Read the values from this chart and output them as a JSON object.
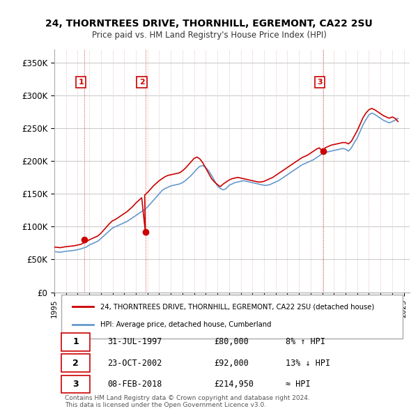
{
  "title": "24, THORNTREES DRIVE, THORNHILL, EGREMONT, CA22 2SU",
  "subtitle": "Price paid vs. HM Land Registry's House Price Index (HPI)",
  "ylabel_ticks": [
    "£0",
    "£50K",
    "£100K",
    "£150K",
    "£200K",
    "£250K",
    "£300K",
    "£350K"
  ],
  "ytick_values": [
    0,
    50000,
    100000,
    150000,
    200000,
    250000,
    300000,
    350000
  ],
  "ylim": [
    0,
    370000
  ],
  "xlim_start": 1995.0,
  "xlim_end": 2025.5,
  "sales": [
    {
      "label": "1",
      "date_str": "31-JUL-1997",
      "year": 1997.58,
      "price": 80000,
      "hpi_note": "8% ↑ HPI"
    },
    {
      "label": "2",
      "date_str": "23-OCT-2002",
      "year": 2002.81,
      "price": 92000,
      "hpi_note": "13% ↓ HPI"
    },
    {
      "label": "3",
      "date_str": "08-FEB-2018",
      "year": 2018.1,
      "price": 214950,
      "hpi_note": "≈ HPI"
    }
  ],
  "legend_line1": "24, THORNTREES DRIVE, THORNHILL, EGREMONT, CA22 2SU (detached house)",
  "legend_line2": "HPI: Average price, detached house, Cumberland",
  "footer1": "Contains HM Land Registry data © Crown copyright and database right 2024.",
  "footer2": "This data is licensed under the Open Government Licence v3.0.",
  "red_color": "#cc0000",
  "blue_color": "#6699cc",
  "background_color": "#ffffff",
  "grid_color": "#cccccc",
  "hpi_data_x": [
    1995.0,
    1995.25,
    1995.5,
    1995.75,
    1996.0,
    1996.25,
    1996.5,
    1996.75,
    1997.0,
    1997.25,
    1997.5,
    1997.75,
    1998.0,
    1998.25,
    1998.5,
    1998.75,
    1999.0,
    1999.25,
    1999.5,
    1999.75,
    2000.0,
    2000.25,
    2000.5,
    2000.75,
    2001.0,
    2001.25,
    2001.5,
    2001.75,
    2002.0,
    2002.25,
    2002.5,
    2002.75,
    2003.0,
    2003.25,
    2003.5,
    2003.75,
    2004.0,
    2004.25,
    2004.5,
    2004.75,
    2005.0,
    2005.25,
    2005.5,
    2005.75,
    2006.0,
    2006.25,
    2006.5,
    2006.75,
    2007.0,
    2007.25,
    2007.5,
    2007.75,
    2008.0,
    2008.25,
    2008.5,
    2008.75,
    2009.0,
    2009.25,
    2009.5,
    2009.75,
    2010.0,
    2010.25,
    2010.5,
    2010.75,
    2011.0,
    2011.25,
    2011.5,
    2011.75,
    2012.0,
    2012.25,
    2012.5,
    2012.75,
    2013.0,
    2013.25,
    2013.5,
    2013.75,
    2014.0,
    2014.25,
    2014.5,
    2014.75,
    2015.0,
    2015.25,
    2015.5,
    2015.75,
    2016.0,
    2016.25,
    2016.5,
    2016.75,
    2017.0,
    2017.25,
    2017.5,
    2017.75,
    2018.0,
    2018.25,
    2018.5,
    2018.75,
    2019.0,
    2019.25,
    2019.5,
    2019.75,
    2020.0,
    2020.25,
    2020.5,
    2020.75,
    2021.0,
    2021.25,
    2021.5,
    2021.75,
    2022.0,
    2022.25,
    2022.5,
    2022.75,
    2023.0,
    2023.25,
    2023.5,
    2023.75,
    2024.0,
    2024.25,
    2024.5
  ],
  "hpi_data_y": [
    62000,
    61500,
    61000,
    61800,
    62500,
    63000,
    63500,
    64000,
    65000,
    66000,
    67500,
    69000,
    72000,
    74000,
    76000,
    78000,
    82000,
    86000,
    90000,
    94000,
    98000,
    100000,
    102000,
    104000,
    106000,
    108000,
    111000,
    114000,
    117000,
    120000,
    123000,
    126000,
    130000,
    135000,
    140000,
    145000,
    150000,
    155000,
    158000,
    160000,
    162000,
    163000,
    164000,
    165000,
    167000,
    170000,
    174000,
    178000,
    183000,
    188000,
    192000,
    193000,
    190000,
    185000,
    178000,
    170000,
    162000,
    158000,
    156000,
    158000,
    163000,
    165000,
    167000,
    168000,
    169000,
    170000,
    169000,
    168000,
    167000,
    166000,
    165000,
    164000,
    163000,
    163000,
    164000,
    166000,
    168000,
    170000,
    173000,
    176000,
    179000,
    182000,
    185000,
    188000,
    191000,
    194000,
    196000,
    198000,
    200000,
    202000,
    205000,
    208000,
    211000,
    213000,
    214000,
    215000,
    216000,
    217000,
    218000,
    219000,
    218000,
    215000,
    220000,
    228000,
    235000,
    245000,
    255000,
    263000,
    270000,
    273000,
    271000,
    268000,
    265000,
    262000,
    260000,
    258000,
    260000,
    262000,
    265000
  ],
  "red_data_x": [
    1995.0,
    1995.25,
    1995.5,
    1995.75,
    1996.0,
    1996.25,
    1996.5,
    1996.75,
    1997.0,
    1997.25,
    1997.5,
    1997.58,
    1997.75,
    1998.0,
    1998.25,
    1998.5,
    1998.75,
    1999.0,
    1999.25,
    1999.5,
    1999.75,
    2000.0,
    2000.25,
    2000.5,
    2000.75,
    2001.0,
    2001.25,
    2001.5,
    2001.75,
    2002.0,
    2002.25,
    2002.5,
    2002.81,
    2002.75,
    2003.0,
    2003.25,
    2003.5,
    2003.75,
    2004.0,
    2004.25,
    2004.5,
    2004.75,
    2005.0,
    2005.25,
    2005.5,
    2005.75,
    2006.0,
    2006.25,
    2006.5,
    2006.75,
    2007.0,
    2007.25,
    2007.5,
    2007.75,
    2008.0,
    2008.25,
    2008.5,
    2008.75,
    2009.0,
    2009.25,
    2009.5,
    2009.75,
    2010.0,
    2010.25,
    2010.5,
    2010.75,
    2011.0,
    2011.25,
    2011.5,
    2011.75,
    2012.0,
    2012.25,
    2012.5,
    2012.75,
    2013.0,
    2013.25,
    2013.5,
    2013.75,
    2014.0,
    2014.25,
    2014.5,
    2014.75,
    2015.0,
    2015.25,
    2015.5,
    2015.75,
    2016.0,
    2016.25,
    2016.5,
    2016.75,
    2017.0,
    2017.25,
    2017.5,
    2017.75,
    2018.0,
    2018.1,
    2018.25,
    2018.5,
    2018.75,
    2019.0,
    2019.25,
    2019.5,
    2019.75,
    2020.0,
    2020.25,
    2020.5,
    2020.75,
    2021.0,
    2021.25,
    2021.5,
    2021.75,
    2022.0,
    2022.25,
    2022.5,
    2022.75,
    2023.0,
    2023.25,
    2023.5,
    2023.75,
    2024.0,
    2024.25,
    2024.5
  ],
  "red_data_y": [
    69000,
    68500,
    68000,
    68800,
    69500,
    70000,
    70500,
    71000,
    72000,
    73000,
    75000,
    80000,
    77000,
    80000,
    82000,
    84000,
    86000,
    90000,
    95000,
    100000,
    105000,
    109000,
    111000,
    114000,
    117000,
    120000,
    123000,
    127000,
    131000,
    136000,
    140000,
    144000,
    92000,
    148000,
    152000,
    157000,
    162000,
    166000,
    170000,
    173000,
    176000,
    178000,
    179000,
    180000,
    181000,
    182000,
    185000,
    189000,
    194000,
    199000,
    204000,
    206000,
    203000,
    197000,
    189000,
    181000,
    173000,
    168000,
    164000,
    161000,
    165000,
    168000,
    171000,
    173000,
    174000,
    175000,
    174000,
    173000,
    172000,
    171000,
    170000,
    169000,
    168000,
    168000,
    169000,
    171000,
    173000,
    175000,
    178000,
    181000,
    184000,
    187000,
    190000,
    193000,
    196000,
    199000,
    202000,
    205000,
    207000,
    209000,
    212000,
    215000,
    218000,
    220000,
    214950,
    214950,
    220000,
    222000,
    224000,
    225000,
    226000,
    227000,
    228000,
    228000,
    226000,
    230000,
    238000,
    246000,
    256000,
    266000,
    273000,
    278000,
    280000,
    278000,
    275000,
    272000,
    269000,
    267000,
    265000,
    267000,
    265000,
    260000
  ]
}
